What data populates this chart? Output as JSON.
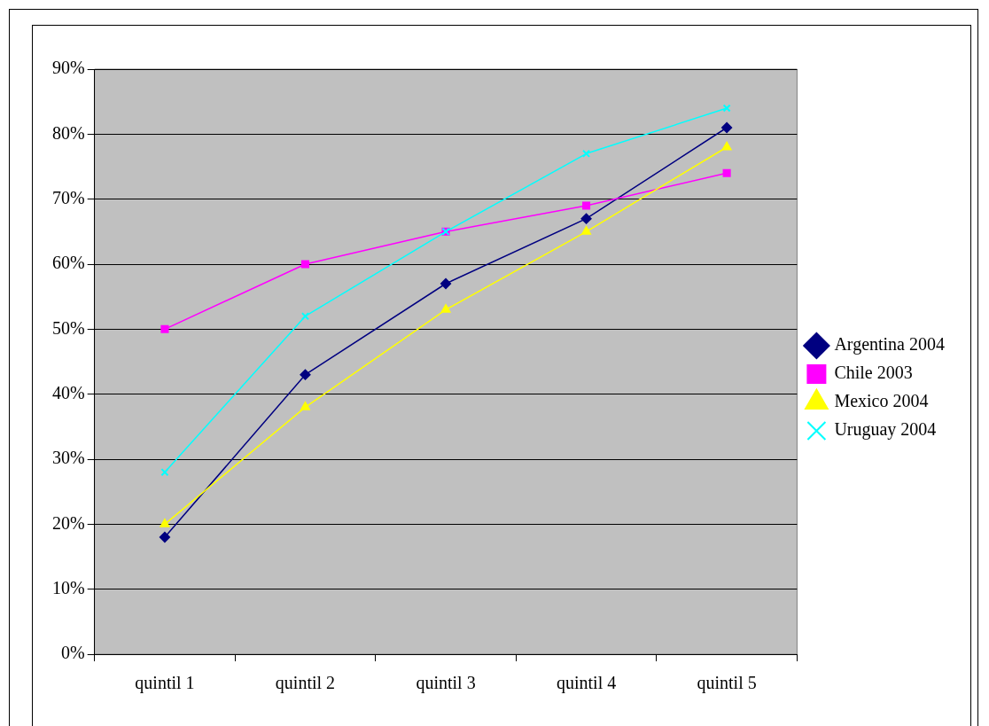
{
  "chart_data": {
    "type": "line",
    "categories": [
      "quintil 1",
      "quintil 2",
      "quintil 3",
      "quintil 4",
      "quintil 5"
    ],
    "series": [
      {
        "name": "Argentina 2004",
        "color": "#000080",
        "marker": "diamond",
        "values": [
          18,
          43,
          57,
          67,
          81
        ]
      },
      {
        "name": "Chile 2003",
        "color": "#ff00ff",
        "marker": "square",
        "values": [
          50,
          60,
          65,
          69,
          74
        ]
      },
      {
        "name": "Mexico 2004",
        "color": "#ffff00",
        "marker": "triangle",
        "values": [
          20,
          38,
          53,
          65,
          78
        ]
      },
      {
        "name": "Uruguay 2004",
        "color": "#00ffff",
        "marker": "cross",
        "values": [
          28,
          52,
          65,
          77,
          84
        ]
      }
    ],
    "ylim": [
      0,
      90
    ],
    "yticks": [
      {
        "value": 0,
        "label": "0%"
      },
      {
        "value": 10,
        "label": "10%"
      },
      {
        "value": 20,
        "label": "20%"
      },
      {
        "value": 30,
        "label": "30%"
      },
      {
        "value": 40,
        "label": "40%"
      },
      {
        "value": 50,
        "label": "50%"
      },
      {
        "value": 60,
        "label": "60%"
      },
      {
        "value": 70,
        "label": "70%"
      },
      {
        "value": 80,
        "label": "80%"
      },
      {
        "value": 90,
        "label": "90%"
      }
    ],
    "grid": "y",
    "legend": "right",
    "line_style": "solid"
  }
}
